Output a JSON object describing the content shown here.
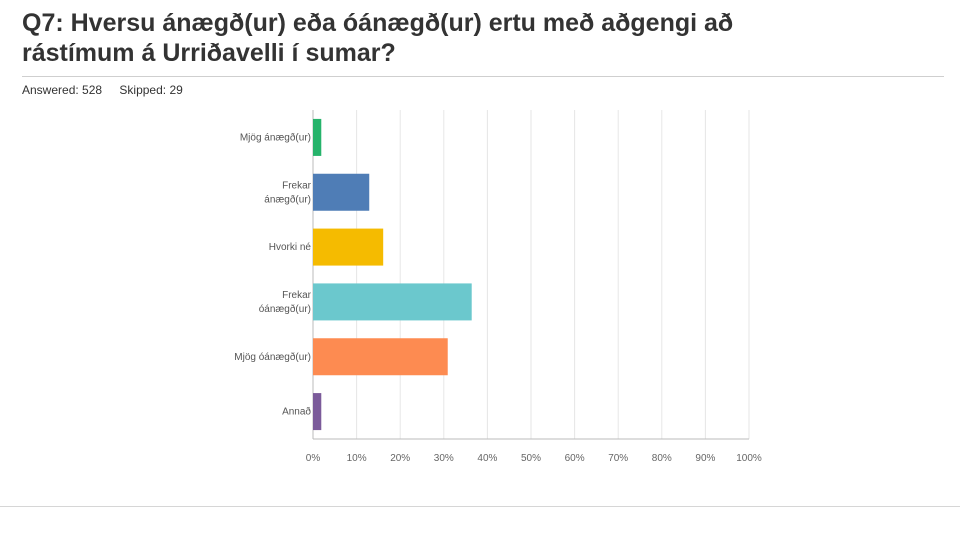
{
  "header": {
    "question_line1": "Q7: Hversu ánægð(ur) eða óánægð(ur) ertu með aðgengi að",
    "question_line2": "rástímum á Urriðavelli í sumar?",
    "answered": "Answered: 528",
    "skipped": "Skipped: 29"
  },
  "chart_data": {
    "type": "bar",
    "orientation": "horizontal",
    "categories": [
      [
        "Mjög ánægð(ur)"
      ],
      [
        "Frekar",
        "ánægð(ur)"
      ],
      [
        "Hvorki né"
      ],
      [
        "Frekar",
        "óánægð(ur)"
      ],
      [
        "Mjög óánægð(ur)"
      ],
      [
        "Annað"
      ]
    ],
    "values": [
      1.9,
      12.9,
      16.1,
      36.4,
      30.9,
      1.9
    ],
    "colors": [
      "#26b36b",
      "#4f7db6",
      "#f5bb00",
      "#6bc8cd",
      "#fd8b51",
      "#7b5b9a"
    ],
    "xlim": [
      0,
      100
    ],
    "xticks": [
      "0%",
      "10%",
      "20%",
      "30%",
      "40%",
      "50%",
      "60%",
      "70%",
      "80%",
      "90%",
      "100%"
    ],
    "grid": true
  }
}
